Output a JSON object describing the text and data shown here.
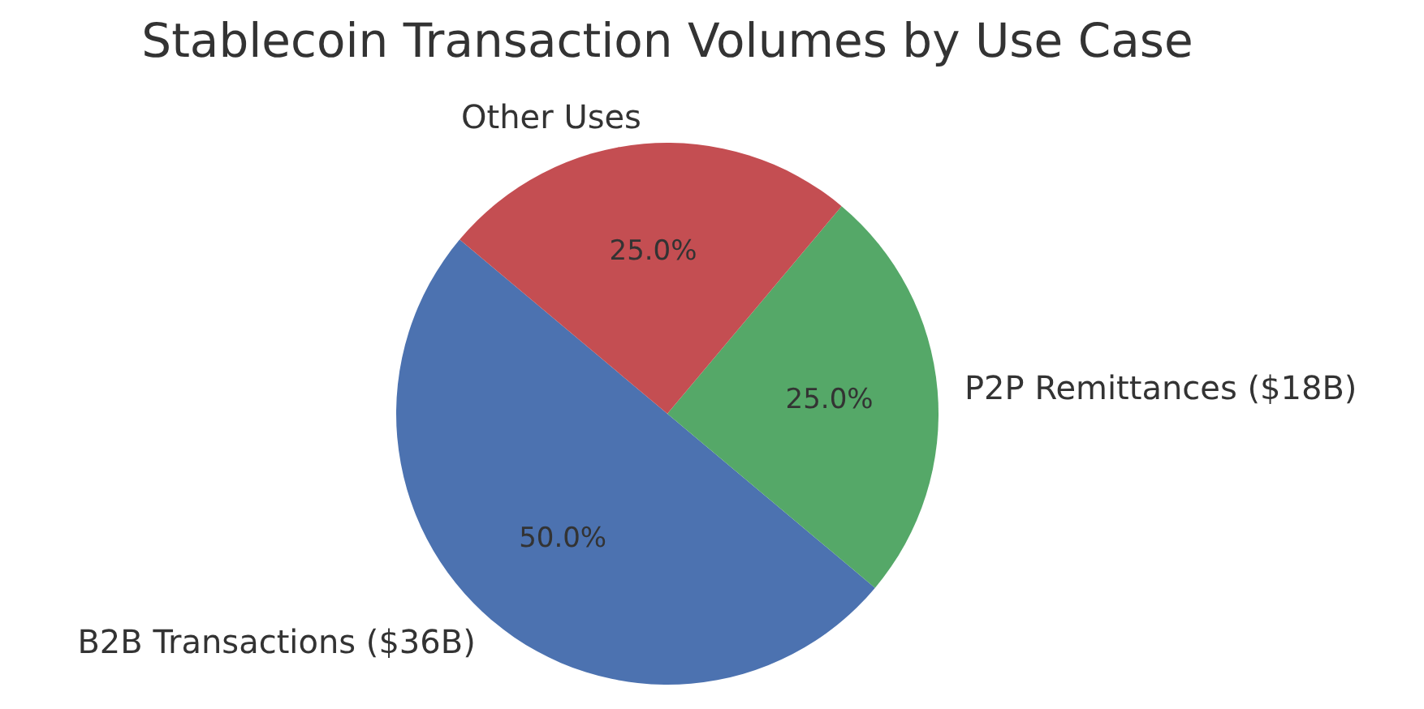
{
  "chart_data": {
    "type": "pie",
    "title": "Stablecoin Transaction Volumes by Use Case",
    "categories": [
      "B2B Transactions ($36B)",
      "P2P Remittances ($18B)",
      "Other Uses"
    ],
    "values": [
      50,
      25,
      25
    ],
    "colors": [
      "#4c72b0",
      "#55a868",
      "#c44e52"
    ],
    "value_labels": [
      "50.0%",
      "25.0%",
      "25.0%"
    ]
  }
}
